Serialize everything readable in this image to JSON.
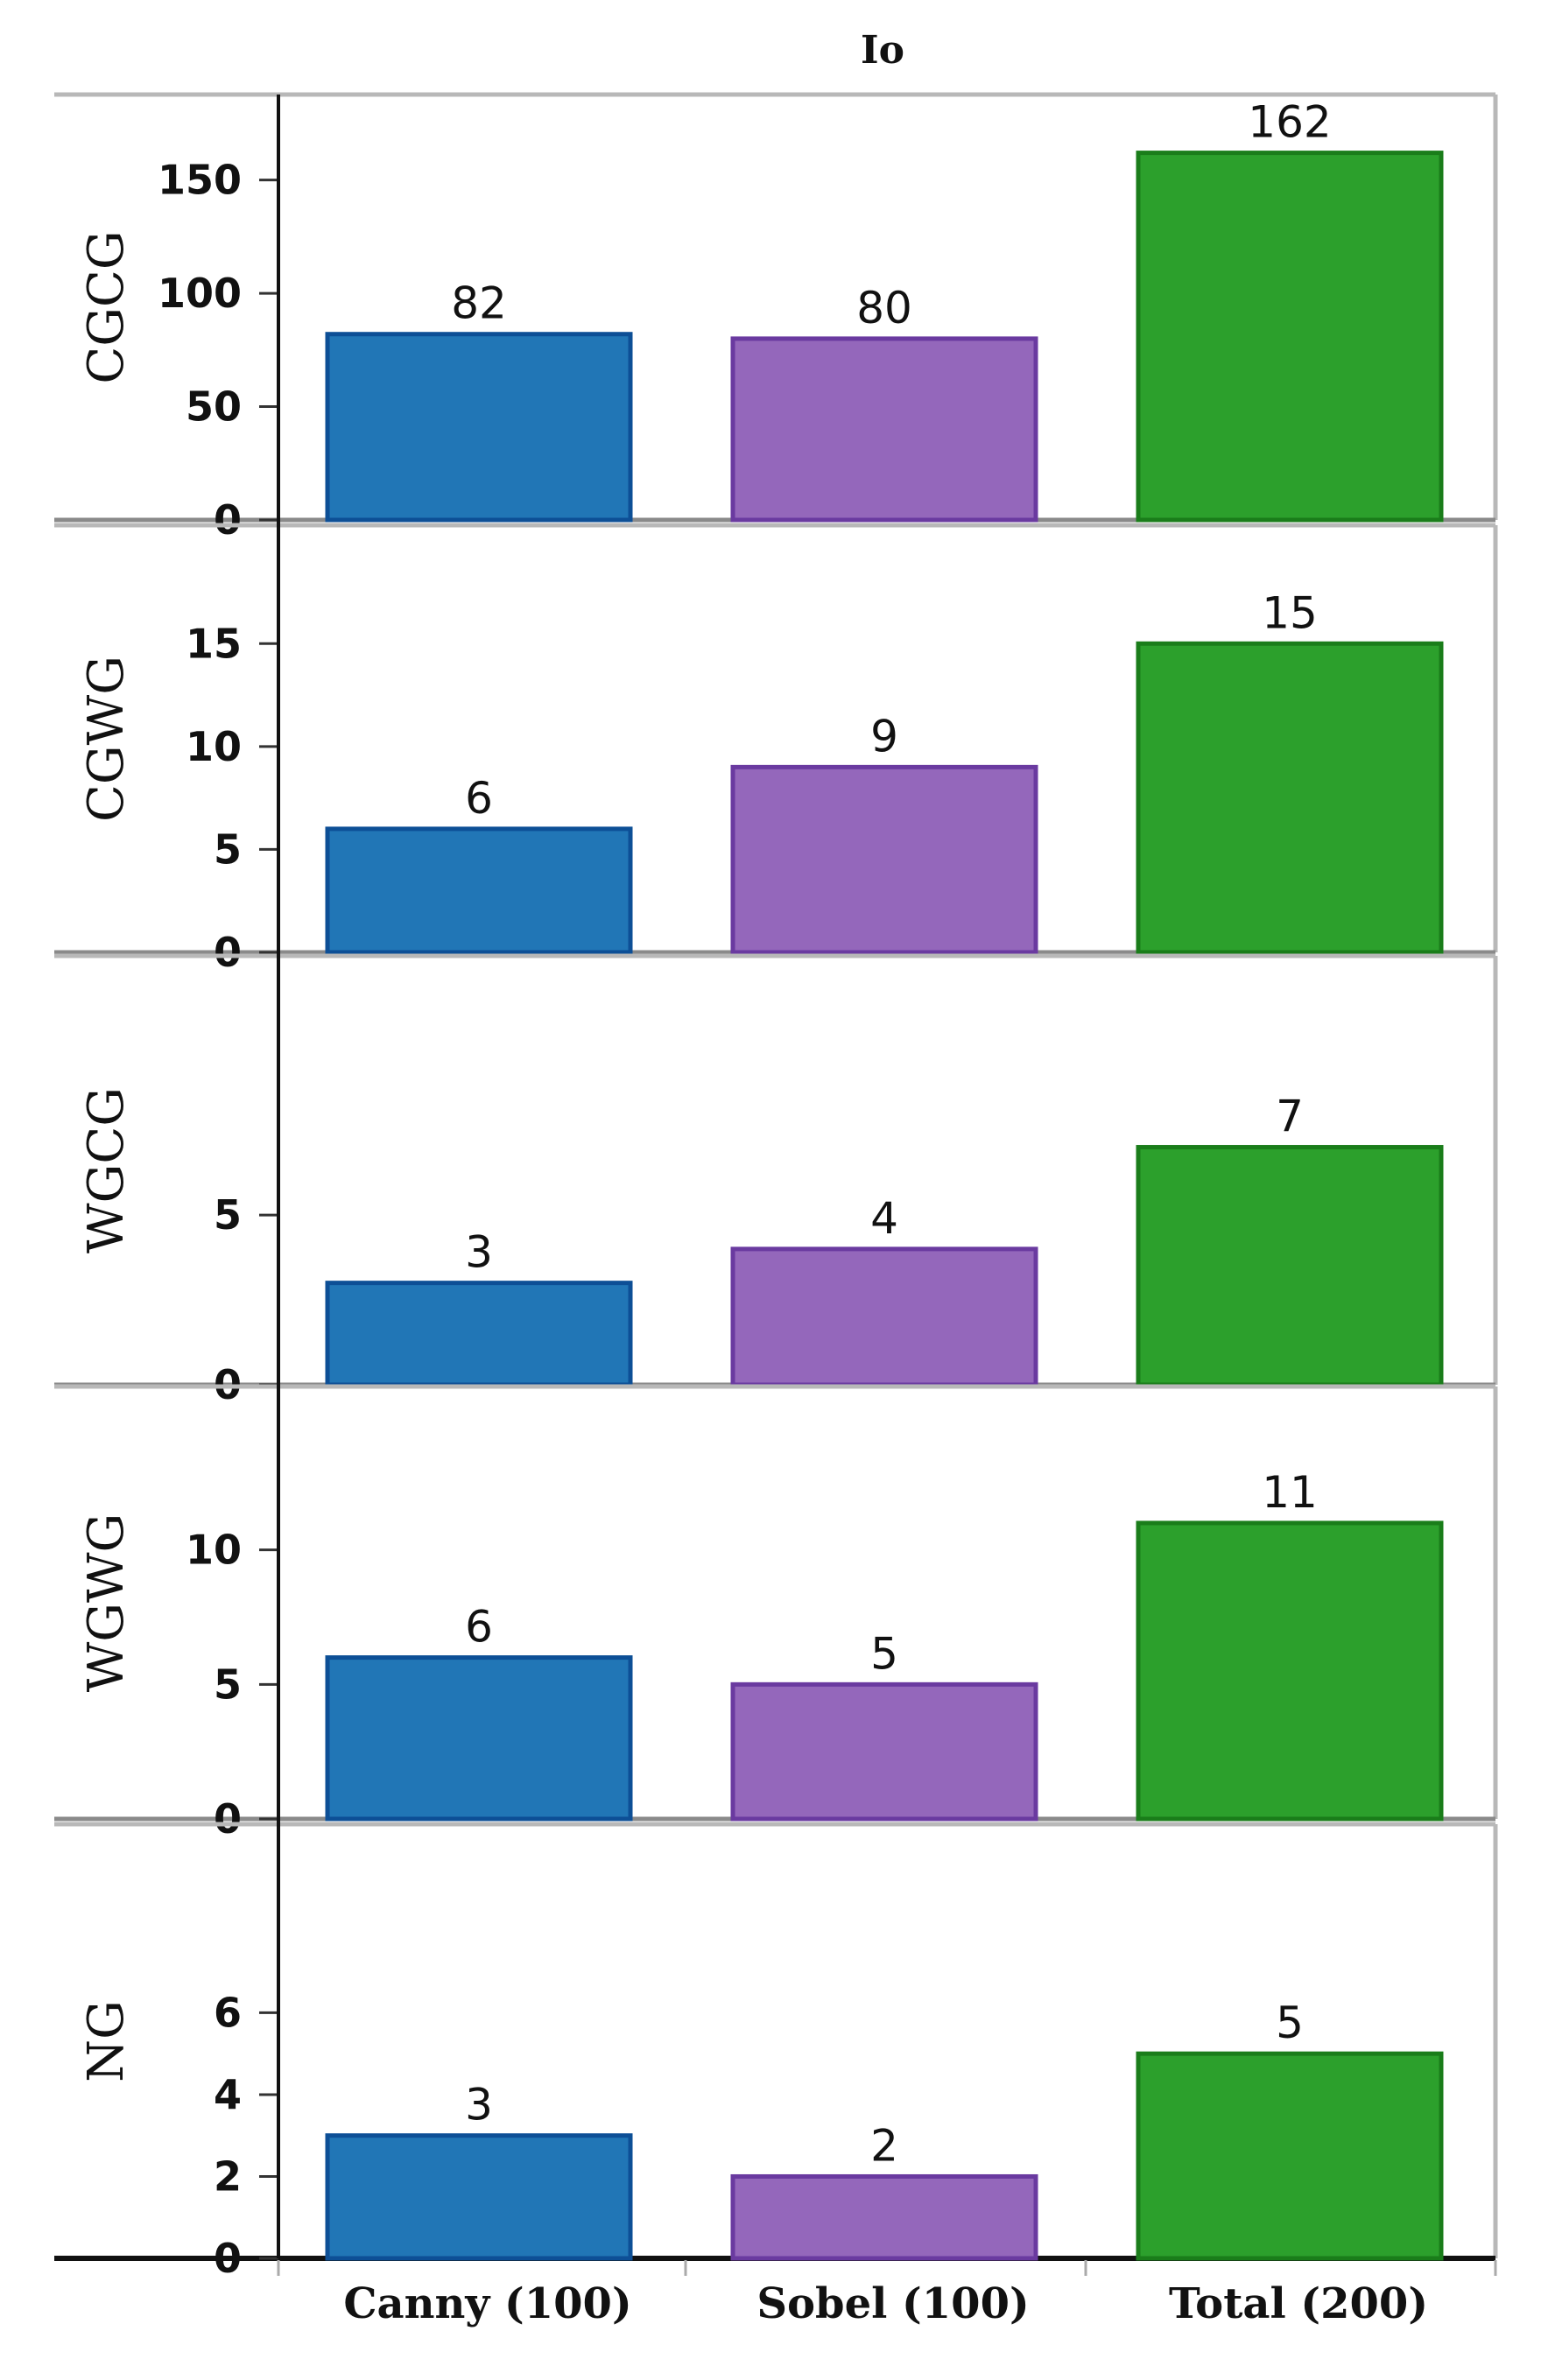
{
  "chart_data": {
    "type": "bar",
    "title": "Io",
    "categories": [
      "Canny (100)",
      "Sobel (100)",
      "Total (200)"
    ],
    "colors": {
      "Canny (100)": "#2176b6",
      "Sobel (100)": "#9467bb",
      "Total (200)": "#2ca02c"
    },
    "edge_colors": {
      "Canny (100)": "#0d4f96",
      "Sobel (100)": "#6a3aa0",
      "Total (200)": "#1a7d1a"
    },
    "panels": [
      {
        "name": "CGCG",
        "values": [
          82,
          80,
          162
        ],
        "ylim": [
          0,
          180
        ],
        "yticks": [
          0,
          50,
          100,
          150
        ]
      },
      {
        "name": "CGWG",
        "values": [
          6,
          9,
          15
        ],
        "ylim": [
          0,
          16.5
        ],
        "yticks": [
          0,
          5,
          10,
          15
        ]
      },
      {
        "name": "WGCG",
        "values": [
          3,
          4,
          7
        ],
        "ylim": [
          0,
          8.2
        ],
        "yticks": [
          0,
          5
        ]
      },
      {
        "name": "WGWG",
        "values": [
          6,
          5,
          11
        ],
        "ylim": [
          0,
          12.3
        ],
        "yticks": [
          0,
          5,
          10
        ]
      },
      {
        "name": "NG",
        "values": [
          3,
          2,
          5
        ],
        "ylim": [
          0,
          6.8
        ],
        "yticks": [
          0,
          2,
          4,
          6
        ]
      }
    ],
    "grid": false,
    "legend": "none"
  }
}
